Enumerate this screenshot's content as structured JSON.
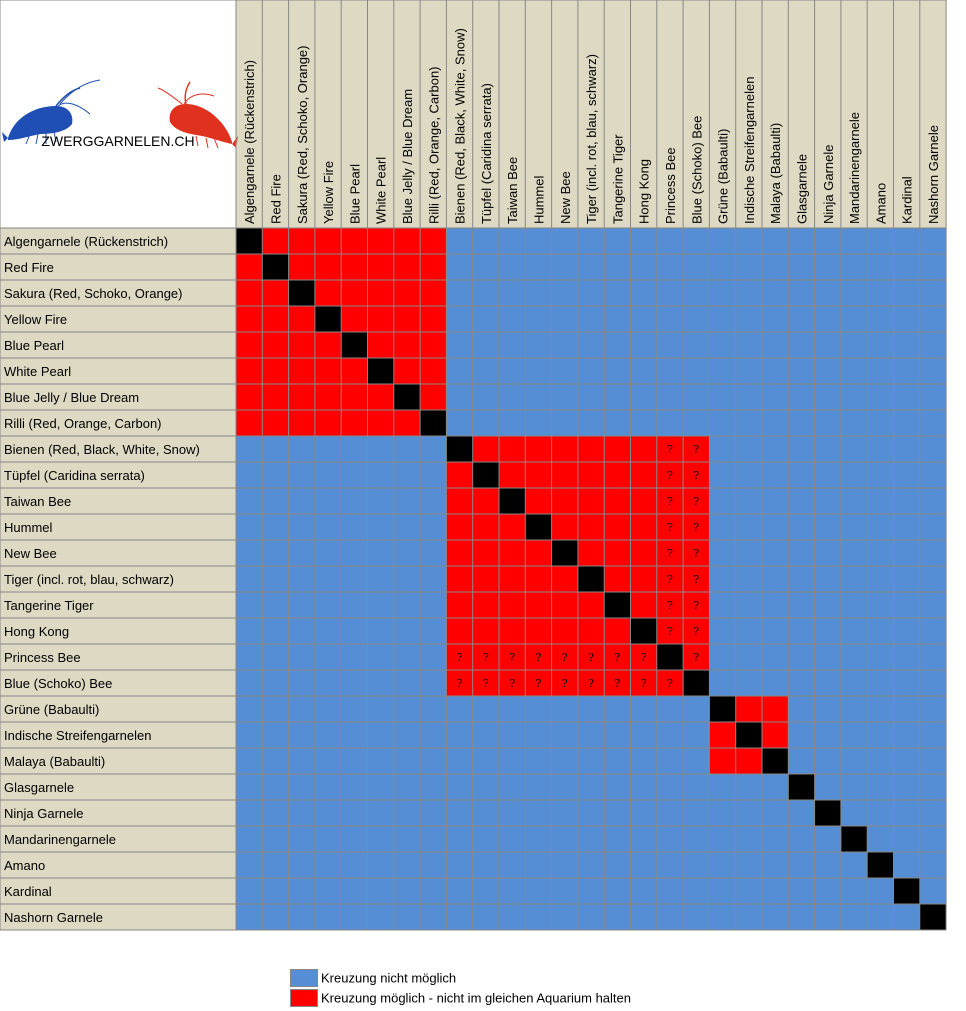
{
  "logo": {
    "text": "ZWERGGARNELEN.CH"
  },
  "legend": {
    "items": [
      {
        "label": "Kreuzung nicht möglich",
        "color": "#558ED5"
      },
      {
        "label": "Kreuzung möglich - nicht im gleichen Aquarium halten",
        "color": "#FF0000"
      }
    ]
  },
  "colors": {
    "header_bg": "#DDD9C3",
    "no": "#558ED5",
    "yes": "#FF0000",
    "self": "#000000",
    "grid": "#888888"
  },
  "chart_data": {
    "type": "heatmap",
    "species": [
      "Algengarnele (Rückenstrich)",
      "Red Fire",
      "Sakura (Red, Schoko, Orange)",
      "Yellow Fire",
      "Blue Pearl",
      "White Pearl",
      "Blue Jelly / Blue Dream",
      "Rilli (Red, Orange, Carbon)",
      "Bienen (Red, Black, White, Snow)",
      "Tüpfel (Caridina serrata)",
      "Taiwan Bee",
      "Hummel",
      "New Bee",
      "Tiger (incl. rot, blau, schwarz)",
      "Tangerine Tiger",
      "Hong Kong",
      "Princess Bee",
      "Blue (Schoko) Bee",
      "Grüne (Babaulti)",
      "Indische Streifengarnelen",
      "Malaya (Babaulti)",
      "Glasgarnele",
      "Ninja Garnele",
      "Mandarinengarnele",
      "Amano",
      "Kardinal",
      "Nashorn Garnele"
    ],
    "groups": [
      [
        0,
        7
      ],
      [
        8,
        17
      ],
      [
        18,
        20
      ]
    ],
    "uncertain_cols": [
      16,
      17
    ],
    "uncertain_rows": [
      16,
      17
    ],
    "uncertain_symbol": "?",
    "cell_values": {
      "self": "self",
      "crossable": "crossable",
      "not_crossable": "not crossable"
    }
  }
}
